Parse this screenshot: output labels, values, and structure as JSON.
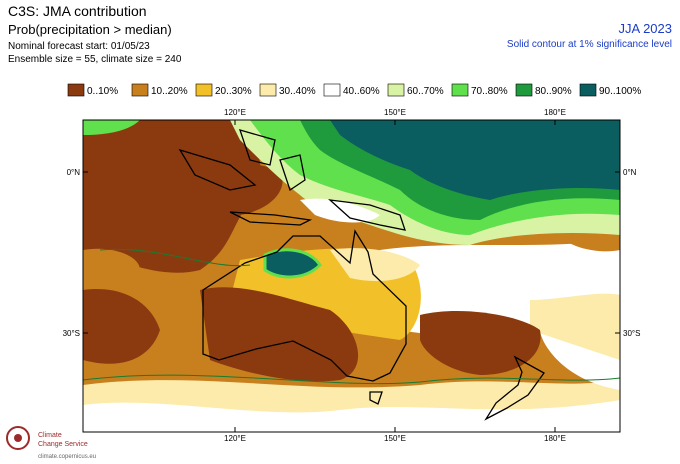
{
  "header": {
    "title": "C3S: JMA contribution",
    "subtitle": "Prob(precipitation > median)",
    "forecast_start": "Nominal forecast start: 01/05/23",
    "ensemble": "Ensemble size = 55, climate size = 240",
    "season": "JJA 2023",
    "note": "Solid contour at 1% significance level"
  },
  "legend": [
    {
      "label": "0..10%",
      "color": "#8b3a10"
    },
    {
      "label": "10..20%",
      "color": "#c8801e"
    },
    {
      "label": "20..30%",
      "color": "#f2c12a"
    },
    {
      "label": "30..40%",
      "color": "#fcebaa"
    },
    {
      "label": "40..60%",
      "color": "#ffffff"
    },
    {
      "label": "60..70%",
      "color": "#d9f3a4"
    },
    {
      "label": "70..80%",
      "color": "#5fe04c"
    },
    {
      "label": "80..90%",
      "color": "#1f9a3c"
    },
    {
      "label": "90..100%",
      "color": "#0b5e60"
    }
  ],
  "map": {
    "lon_labels_top": [
      "120°E",
      "150°E",
      "180°E"
    ],
    "lon_labels_bottom": [
      "120°E",
      "150°E",
      "180°E"
    ],
    "lat_labels_left": [
      "0°N",
      "30°S"
    ],
    "lat_labels_right": [
      "0°N",
      "30°S"
    ]
  },
  "footer": {
    "logo_line1": "Climate",
    "logo_line2": "Change Service",
    "url": "climate.copernicus.eu"
  }
}
